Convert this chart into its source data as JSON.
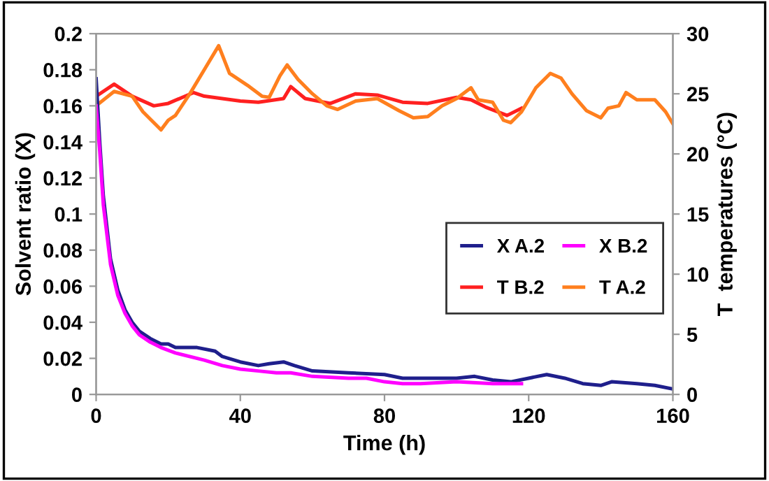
{
  "chart_data": {
    "type": "line",
    "xlabel": "Time (h)",
    "ylabel": "Solvent ratio (X)",
    "y2label": "T  temperatures (°C)",
    "xlim": [
      0,
      160
    ],
    "xticks": [
      0,
      40,
      80,
      120,
      160
    ],
    "ylim": [
      0,
      0.2
    ],
    "yticks": [
      0,
      0.02,
      0.04,
      0.06,
      0.08,
      0.1,
      0.12,
      0.14,
      0.16,
      0.18,
      0.2
    ],
    "y2lim": [
      0,
      30
    ],
    "y2ticks": [
      0,
      5,
      10,
      15,
      20,
      25,
      30
    ],
    "grid": false,
    "legend": "center right",
    "marker": "none",
    "line_style": "solid",
    "series": [
      {
        "name": "X A.2",
        "color": "#1f1f8c",
        "x": [
          0,
          1,
          2,
          4,
          6,
          8,
          10,
          12,
          15,
          18,
          20,
          22,
          28,
          33,
          35,
          40,
          45,
          48,
          52,
          55,
          60,
          70,
          80,
          85,
          90,
          100,
          105,
          110,
          115,
          120,
          125,
          130,
          135,
          140,
          143,
          150,
          155,
          160
        ],
        "values": [
          0.175,
          0.14,
          0.11,
          0.075,
          0.058,
          0.047,
          0.04,
          0.035,
          0.031,
          0.028,
          0.028,
          0.026,
          0.026,
          0.024,
          0.021,
          0.018,
          0.016,
          0.017,
          0.018,
          0.016,
          0.013,
          0.012,
          0.011,
          0.009,
          0.009,
          0.009,
          0.01,
          0.008,
          0.007,
          0.009,
          0.011,
          0.009,
          0.006,
          0.005,
          0.007,
          0.006,
          0.005,
          0.003
        ]
      },
      {
        "name": "X B.2",
        "color": "#ff00ff",
        "x": [
          0,
          1,
          2,
          4,
          6,
          8,
          10,
          12,
          15,
          18,
          22,
          30,
          35,
          40,
          45,
          50,
          54,
          60,
          70,
          75,
          80,
          85,
          90,
          100,
          110,
          118
        ],
        "values": [
          0.16,
          0.135,
          0.105,
          0.072,
          0.055,
          0.045,
          0.038,
          0.033,
          0.029,
          0.026,
          0.023,
          0.019,
          0.016,
          0.014,
          0.013,
          0.012,
          0.012,
          0.01,
          0.009,
          0.009,
          0.007,
          0.006,
          0.006,
          0.007,
          0.006,
          0.006
        ]
      },
      {
        "name": "T B.2",
        "color": "#ff2020",
        "axis": "y2",
        "x": [
          0,
          5,
          10,
          16,
          20,
          27,
          30,
          40,
          45,
          52,
          54,
          58,
          65,
          72,
          78,
          85,
          92,
          100,
          104,
          108,
          114,
          118
        ],
        "values": [
          24.8,
          25.8,
          24.8,
          24.0,
          24.2,
          25.1,
          24.8,
          24.4,
          24.3,
          24.6,
          25.6,
          24.6,
          24.2,
          25.0,
          24.9,
          24.3,
          24.2,
          24.7,
          24.5,
          23.9,
          23.2,
          23.8
        ]
      },
      {
        "name": "T A.2",
        "color": "#ff7f1e",
        "axis": "y2",
        "x": [
          0,
          5,
          10,
          13,
          18,
          20,
          22,
          26,
          30,
          34,
          37,
          42,
          46,
          48,
          51,
          53,
          56,
          60,
          64,
          67,
          72,
          78,
          84,
          88,
          92,
          96,
          100,
          104,
          106,
          110,
          113,
          115,
          118,
          122,
          126,
          129,
          132,
          136,
          140,
          142,
          145,
          147,
          150,
          155,
          158,
          160
        ],
        "values": [
          24.0,
          25.2,
          24.8,
          23.5,
          22.0,
          22.8,
          23.2,
          25.0,
          27.0,
          29.0,
          26.7,
          25.7,
          24.8,
          24.7,
          26.5,
          27.4,
          26.2,
          25.0,
          24.0,
          23.7,
          24.4,
          24.6,
          23.6,
          23.0,
          23.1,
          24.0,
          24.6,
          25.5,
          24.5,
          24.3,
          22.8,
          22.6,
          23.5,
          25.5,
          26.7,
          26.3,
          25.0,
          23.6,
          23.0,
          23.8,
          24.0,
          25.1,
          24.5,
          24.5,
          23.5,
          22.5
        ]
      }
    ]
  }
}
